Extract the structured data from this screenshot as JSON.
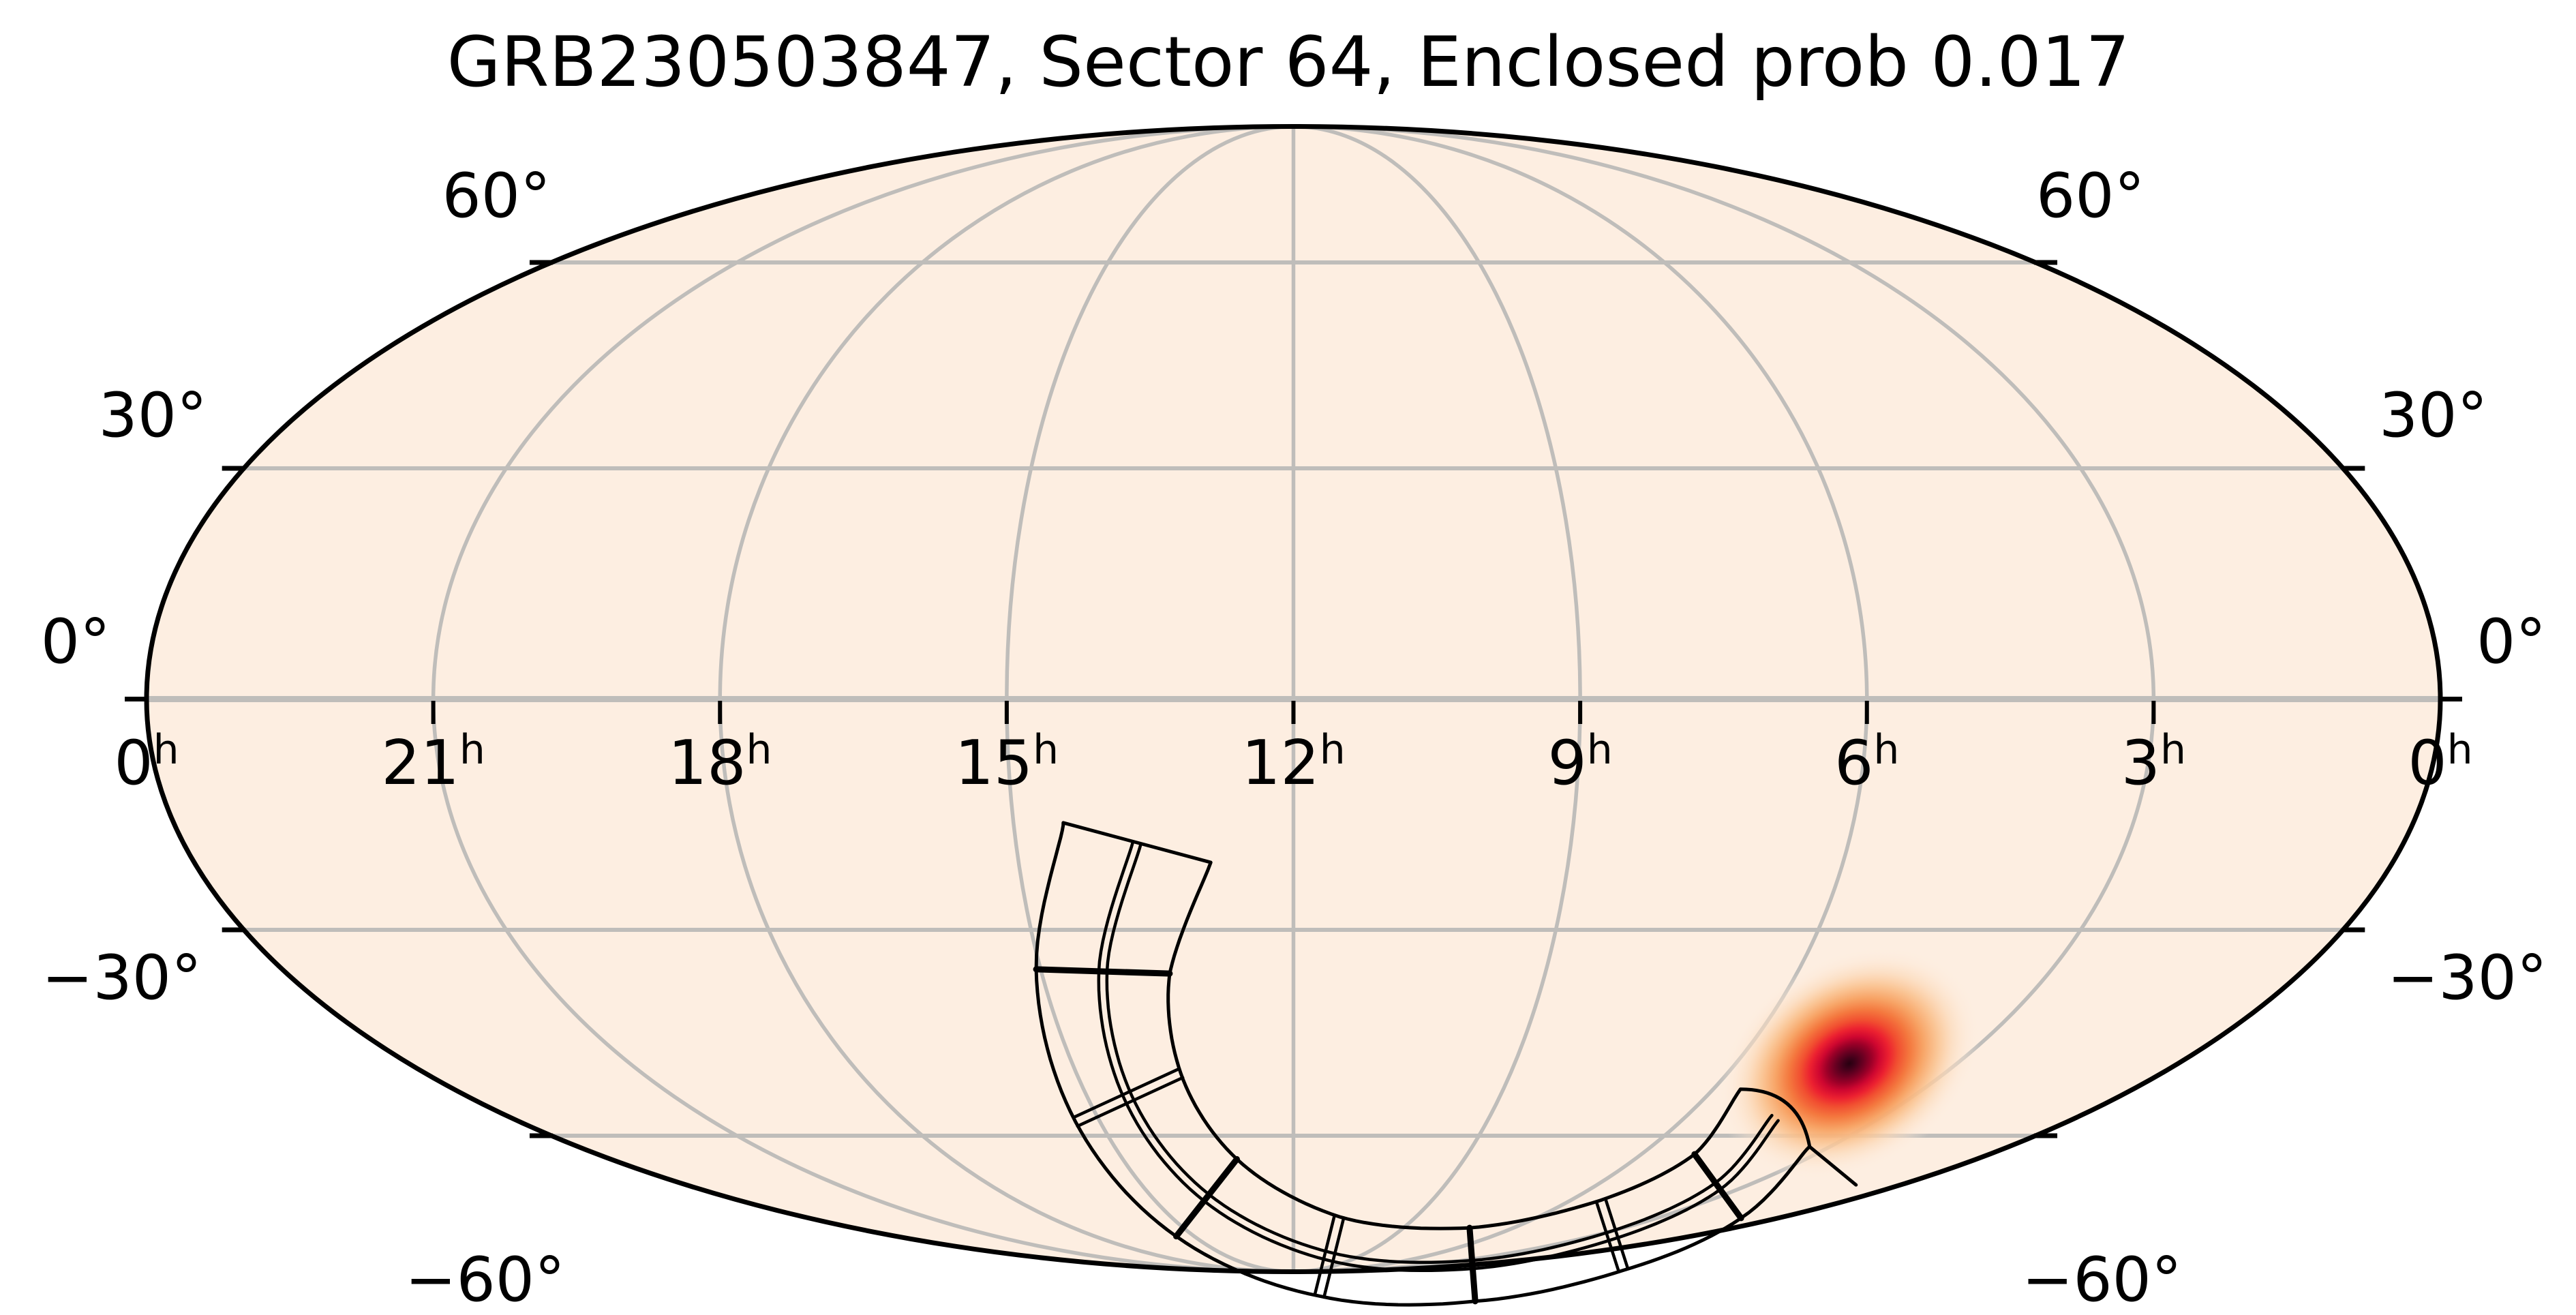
{
  "figure_title": "GRB230503847, Sector 64, Enclosed prob 0.017",
  "axes": {
    "ra_tick_labels": [
      {
        "value": "0",
        "sup": "h"
      },
      {
        "value": "21",
        "sup": "h"
      },
      {
        "value": "18",
        "sup": "h"
      },
      {
        "value": "15",
        "sup": "h"
      },
      {
        "value": "12",
        "sup": "h"
      },
      {
        "value": "9",
        "sup": "h"
      },
      {
        "value": "6",
        "sup": "h"
      },
      {
        "value": "3",
        "sup": "h"
      },
      {
        "value": "0",
        "sup": "h"
      }
    ],
    "dec_tick_labels": [
      "60°",
      "30°",
      "0°",
      "−30°",
      "−60°"
    ],
    "dec_values": [
      60,
      30,
      0,
      -30,
      -60
    ]
  },
  "chart_data": {
    "type": "heatmap",
    "title": "GRB230503847, Sector 64, Enclosed prob 0.017",
    "event": {
      "name": "GRB230503847",
      "tess_sector": 64,
      "enclosed_probability": 0.017
    },
    "projection": {
      "kind": "all-sky 2:1 ellipse (Mollweide-style), equatorial coordinates",
      "ra_hours_left_to_right": [
        0,
        21,
        18,
        15,
        12,
        9,
        6,
        3,
        0
      ],
      "dec_gridlines_deg": [
        60,
        30,
        0,
        -30,
        -60
      ],
      "grid": "on"
    },
    "probability_blob": {
      "shape": "tilted 2D gaussian probability density",
      "approx_peak_ra_hours": 6.2,
      "approx_peak_dec_deg": -49,
      "tilt_deg": -33,
      "peak_color": "#270010"
    },
    "tess_footprint": {
      "mission": "TESS",
      "sector": 64,
      "cameras": 4,
      "ccd_grid": "2 columns x 8 rows along a curved band",
      "span": "curved band from about (13.5h, -20°) down near the south ecliptic region and back up to about (6.3h, -50°)"
    },
    "colors": {
      "background": "#ffffff",
      "sky_fill": "#fdeee1",
      "graticule": "#bfbdba",
      "outline": "#000000",
      "footprint": "#000000",
      "heat_scale": [
        "#270010",
        "#6d0022",
        "#9c0028",
        "#cf0730",
        "#ec2130",
        "#f14e30",
        "#f4793f",
        "#f7a263",
        "#fac28f",
        "#fcd9b8",
        "#fdeee1"
      ]
    }
  }
}
